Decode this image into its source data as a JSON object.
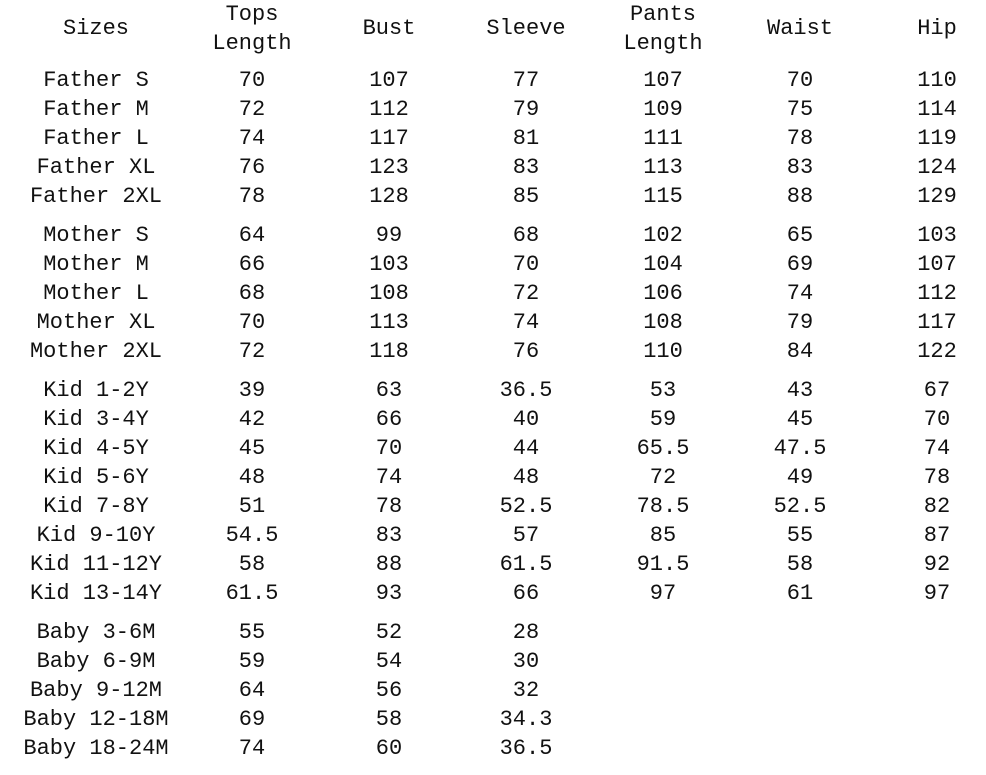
{
  "headers": [
    [
      "Sizes"
    ],
    [
      "Tops",
      "Length"
    ],
    [
      "Bust"
    ],
    [
      "Sleeve"
    ],
    [
      "Pants",
      "Length"
    ],
    [
      "Waist"
    ],
    [
      "Hip"
    ]
  ],
  "groups": [
    {
      "rows": [
        [
          "Father S",
          "70",
          "107",
          "77",
          "107",
          "70",
          "110"
        ],
        [
          "Father M",
          "72",
          "112",
          "79",
          "109",
          "75",
          "114"
        ],
        [
          "Father L",
          "74",
          "117",
          "81",
          "111",
          "78",
          "119"
        ],
        [
          "Father XL",
          "76",
          "123",
          "83",
          "113",
          "83",
          "124"
        ],
        [
          "Father 2XL",
          "78",
          "128",
          "85",
          "115",
          "88",
          "129"
        ]
      ]
    },
    {
      "rows": [
        [
          "Mother S",
          "64",
          "99",
          "68",
          "102",
          "65",
          "103"
        ],
        [
          "Mother M",
          "66",
          "103",
          "70",
          "104",
          "69",
          "107"
        ],
        [
          "Mother L",
          "68",
          "108",
          "72",
          "106",
          "74",
          "112"
        ],
        [
          "Mother XL",
          "70",
          "113",
          "74",
          "108",
          "79",
          "117"
        ],
        [
          "Mother 2XL",
          "72",
          "118",
          "76",
          "110",
          "84",
          "122"
        ]
      ]
    },
    {
      "rows": [
        [
          "Kid 1-2Y",
          "39",
          "63",
          "36.5",
          "53",
          "43",
          "67"
        ],
        [
          "Kid 3-4Y",
          "42",
          "66",
          "40",
          "59",
          "45",
          "70"
        ],
        [
          "Kid 4-5Y",
          "45",
          "70",
          "44",
          "65.5",
          "47.5",
          "74"
        ],
        [
          "Kid 5-6Y",
          "48",
          "74",
          "48",
          "72",
          "49",
          "78"
        ],
        [
          "Kid 7-8Y",
          "51",
          "78",
          "52.5",
          "78.5",
          "52.5",
          "82"
        ],
        [
          "Kid 9-10Y",
          "54.5",
          "83",
          "57",
          "85",
          "55",
          "87"
        ],
        [
          "Kid 11-12Y",
          "58",
          "88",
          "61.5",
          "91.5",
          "58",
          "92"
        ],
        [
          "Kid 13-14Y",
          "61.5",
          "93",
          "66",
          "97",
          "61",
          "97"
        ]
      ]
    },
    {
      "rows": [
        [
          "Baby 3-6M",
          "55",
          "52",
          "28",
          "",
          "",
          ""
        ],
        [
          "Baby 6-9M",
          "59",
          "54",
          "30",
          "",
          "",
          ""
        ],
        [
          "Baby 9-12M",
          "64",
          "56",
          "32",
          "",
          "",
          ""
        ],
        [
          "Baby 12-18M",
          "69",
          "58",
          "34.3",
          "",
          "",
          ""
        ],
        [
          "Baby 18-24M",
          "74",
          "60",
          "36.5",
          "",
          "",
          ""
        ]
      ]
    }
  ]
}
